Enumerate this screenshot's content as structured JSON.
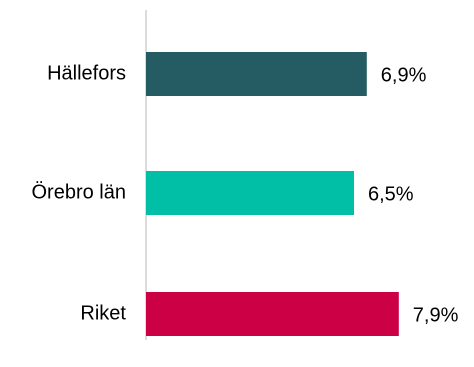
{
  "chart_data": {
    "type": "bar",
    "orientation": "horizontal",
    "categories": [
      "Hällefors",
      "Örebro län",
      "Riket"
    ],
    "values": [
      6.9,
      6.5,
      7.9
    ],
    "value_labels": [
      "6,9%",
      "6,5%",
      "7,9%"
    ],
    "colors": [
      "#255b63",
      "#00bfa6",
      "#cc0044"
    ],
    "xlim": [
      0,
      10
    ],
    "title": "",
    "xlabel": "",
    "ylabel": "",
    "grid": false,
    "legend": "none"
  }
}
